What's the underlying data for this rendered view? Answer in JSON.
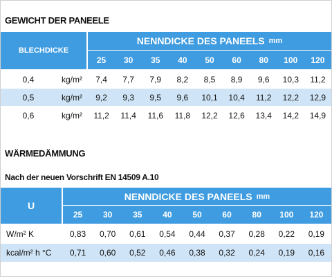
{
  "section1": {
    "title": "GEWICHT DER PANEELE",
    "table": {
      "row_header": "BLECHDICKE",
      "group_header": "NENNDICKE DES PANEELS",
      "group_unit": "mm",
      "columns": [
        25,
        30,
        35,
        40,
        50,
        60,
        80,
        100,
        120
      ],
      "rows": [
        {
          "label": "0,4",
          "unit": "kg/m²",
          "values": [
            "7,4",
            "7,7",
            "7,9",
            "8,2",
            "8,5",
            "8,9",
            "9,6",
            "10,3",
            "11,2"
          ]
        },
        {
          "label": "0,5",
          "unit": "kg/m²",
          "values": [
            "9,2",
            "9,3",
            "9,5",
            "9,6",
            "10,1",
            "10,4",
            "11,2",
            "12,2",
            "12,9"
          ]
        },
        {
          "label": "0,6",
          "unit": "kg/m²",
          "values": [
            "11,2",
            "11,4",
            "11,6",
            "11,8",
            "12,2",
            "12,6",
            "13,4",
            "14,2",
            "14,9"
          ]
        }
      ]
    }
  },
  "section2": {
    "title": "WÄRMEDÄMMUNG",
    "subtitle": "Nach der neuen Vorschrift EN 14509 A.10",
    "table": {
      "row_header": "U",
      "group_header": "NENNDICKE DES PANEELS",
      "group_unit": "mm",
      "columns": [
        25,
        30,
        35,
        40,
        50,
        60,
        80,
        100,
        120
      ],
      "rows": [
        {
          "label": "W/m² K",
          "values": [
            "0,83",
            "0,70",
            "0,61",
            "0,54",
            "0,44",
            "0,37",
            "0,28",
            "0,22",
            "0,19"
          ]
        },
        {
          "label": "kcal/m² h °C",
          "values": [
            "0,71",
            "0,60",
            "0,52",
            "0,46",
            "0,38",
            "0,32",
            "0,24",
            "0,19",
            "0,16"
          ]
        }
      ]
    }
  }
}
